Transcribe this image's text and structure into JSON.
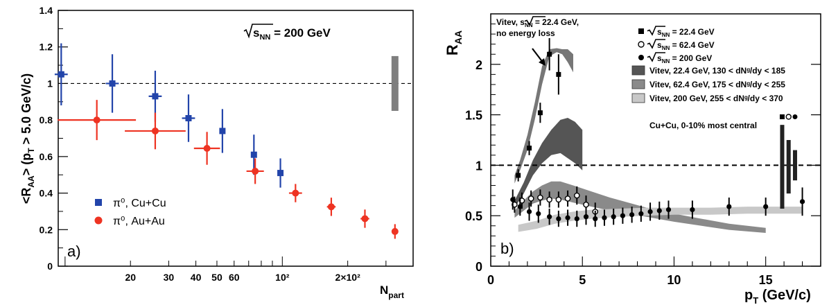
{
  "chart_data": [
    {
      "type": "scatter",
      "panel_label": "a)",
      "xlabel_main": "N",
      "xlabel_sub": "part",
      "ylabel_parts": [
        "<R",
        "AA",
        "> (p",
        "T",
        " > 5.0 GeV/c)"
      ],
      "annotation_main": "s",
      "annotation_sub": "NN",
      "annotation_rest": " = 200 GeV",
      "xscale": "log",
      "xlim": [
        9.3,
        400
      ],
      "ylim": [
        0,
        1.4
      ],
      "reference_line": 1,
      "grid": false,
      "legend_position": "bottom-left",
      "yticks": [
        0,
        0.2,
        0.4,
        0.6,
        0.8,
        1,
        1.2,
        1.4
      ],
      "ytick_labels": [
        "0",
        "0.2",
        "0.4",
        "0.6",
        "0.8",
        "1",
        "1.2",
        "1.4"
      ],
      "xticks": [
        20,
        30,
        40,
        50,
        60,
        100,
        200
      ],
      "xtick_labels": [
        "20",
        "30",
        "40",
        "50",
        "60",
        "10²",
        "2×10²"
      ],
      "systematic_band": {
        "x": 330,
        "low": 0.85,
        "high": 1.15
      },
      "series": [
        {
          "name": "π⁰, Cu+Cu",
          "color": "#2244aa",
          "marker": "square",
          "points": [
            {
              "x": 9.6,
              "y": 1.05,
              "err": 0.17,
              "xerr": 0.03
            },
            {
              "x": 16.5,
              "y": 1.0,
              "err": 0.16,
              "xerr": 0.03
            },
            {
              "x": 26,
              "y": 0.93,
              "err": 0.14,
              "xerr": 0.03
            },
            {
              "x": 37,
              "y": 0.81,
              "err": 0.13,
              "xerr": 0.03
            },
            {
              "x": 53,
              "y": 0.74,
              "err": 0.12,
              "xerr": 0.01
            },
            {
              "x": 74,
              "y": 0.61,
              "err": 0.11,
              "xerr": 0.01
            },
            {
              "x": 98,
              "y": 0.51,
              "err": 0.08,
              "xerr": 0.01
            }
          ]
        },
        {
          "name": "π⁰, Au+Au",
          "color": "#ee3322",
          "marker": "circle",
          "points": [
            {
              "x": 14,
              "y": 0.8,
              "err": 0.11,
              "xerr": 0.18
            },
            {
              "x": 26,
              "y": 0.74,
              "err": 0.1,
              "xerr": 0.14
            },
            {
              "x": 45,
              "y": 0.645,
              "err": 0.09,
              "xerr": 0.06
            },
            {
              "x": 75,
              "y": 0.52,
              "err": 0.07,
              "xerr": 0.04
            },
            {
              "x": 115,
              "y": 0.4,
              "err": 0.05,
              "xerr": 0.03
            },
            {
              "x": 168,
              "y": 0.325,
              "err": 0.05,
              "xerr": 0.02
            },
            {
              "x": 240,
              "y": 0.26,
              "err": 0.05,
              "xerr": 0.02
            },
            {
              "x": 330,
              "y": 0.19,
              "err": 0.04,
              "xerr": 0.015
            }
          ]
        }
      ]
    },
    {
      "type": "scatter",
      "panel_label": "b)",
      "ylabel_main": "R",
      "ylabel_sub": "AA",
      "xlabel_main": "p",
      "xlabel_sub": "T",
      "xlabel_rest": " (GeV/c)",
      "xlim": [
        0,
        18
      ],
      "ylim": [
        0,
        2.5
      ],
      "reference_line": 1,
      "grid": false,
      "legend_position": "top-right",
      "xticks": [
        0,
        5,
        10,
        15
      ],
      "xtick_labels": [
        "0",
        "5",
        "10",
        "15"
      ],
      "yticks": [
        0,
        0.5,
        1,
        1.5,
        2
      ],
      "ytick_labels": [
        "0",
        "0.5",
        "1",
        "1.5",
        "2"
      ],
      "annotation_top": [
        "Vitev,",
        "s",
        "NN",
        " = 22.4 GeV,",
        "no energy loss"
      ],
      "annotation_side": "Cu+Cu, 0-10% most central",
      "legend_markers": [
        {
          "label_main": "s",
          "label_sub": "NN",
          "label_rest": " = 22.4 GeV",
          "marker": "square"
        },
        {
          "label_main": "s",
          "label_sub": "NN",
          "label_rest": " = 62.4 GeV",
          "marker": "open-circle"
        },
        {
          "label_main": "s",
          "label_sub": "NN",
          "label_rest": " = 200 GeV",
          "marker": "circle"
        }
      ],
      "legend_bands": [
        {
          "label": "Vitev, 22.4 GeV, 130 < dNᵍ/dy < 185",
          "color": "#555555"
        },
        {
          "label": "Vitev, 62.4 GeV, 175 < dNᵍ/dy < 255",
          "color": "#8a8a8a"
        },
        {
          "label": "Vitev, 200 GeV, 255 < dNᵍ/dy < 370",
          "color": "#c8c8c8"
        }
      ],
      "bands": [
        {
          "name": "Vitev, no energy loss",
          "color": "#777777",
          "x": [
            1.3,
            1.6,
            2.0,
            2.4,
            2.8,
            3.2,
            3.6,
            3.9,
            4.2,
            4.5
          ],
          "low": [
            0.82,
            0.95,
            1.15,
            1.45,
            1.8,
            2.08,
            2.12,
            2.1,
            2.02,
            1.92
          ],
          "high": [
            0.9,
            1.05,
            1.3,
            1.62,
            1.98,
            2.15,
            2.16,
            2.15,
            2.15,
            2.1
          ]
        },
        {
          "name": "Vitev, 22.4 GeV",
          "color": "#555555",
          "x": [
            1.3,
            1.8,
            2.3,
            2.8,
            3.3,
            3.8,
            4.2,
            4.6,
            5.0
          ],
          "low": [
            0.58,
            0.72,
            0.9,
            1.02,
            1.1,
            1.12,
            1.07,
            1.02,
            0.95
          ],
          "high": [
            0.65,
            0.83,
            1.05,
            1.22,
            1.35,
            1.45,
            1.47,
            1.43,
            1.35
          ]
        },
        {
          "name": "Vitev, 62.4 GeV",
          "color": "#8a8a8a",
          "x": [
            1.3,
            1.8,
            2.3,
            2.8,
            3.3,
            3.8,
            4.5,
            5.5,
            6.5,
            7.5,
            8.5,
            10,
            11.5,
            13,
            15
          ],
          "low": [
            0.48,
            0.55,
            0.62,
            0.65,
            0.67,
            0.66,
            0.63,
            0.59,
            0.55,
            0.52,
            0.49,
            0.44,
            0.4,
            0.36,
            0.33
          ],
          "high": [
            0.55,
            0.65,
            0.74,
            0.8,
            0.84,
            0.84,
            0.8,
            0.74,
            0.68,
            0.63,
            0.58,
            0.52,
            0.47,
            0.42,
            0.38
          ]
        },
        {
          "name": "Vitev, 200 GeV",
          "color": "#c8c8c8",
          "x": [
            1.5,
            2.5,
            3.5,
            4.5,
            5.5,
            7,
            8.5,
            10,
            12,
            14,
            16,
            17
          ],
          "low": [
            0.34,
            0.37,
            0.42,
            0.45,
            0.47,
            0.49,
            0.5,
            0.51,
            0.51,
            0.52,
            0.52,
            0.52
          ],
          "high": [
            0.41,
            0.45,
            0.51,
            0.54,
            0.56,
            0.57,
            0.58,
            0.58,
            0.58,
            0.59,
            0.59,
            0.59
          ]
        }
      ],
      "systematic_bars": [
        {
          "x": 15.9,
          "low": 0.57,
          "high": 1.4,
          "color": "#222222"
        },
        {
          "x": 16.25,
          "low": 0.72,
          "high": 1.25,
          "color": "#222222"
        },
        {
          "x": 16.6,
          "low": 0.85,
          "high": 1.15,
          "color": "#222222"
        }
      ],
      "series": [
        {
          "name": "22.4 GeV",
          "marker": "square",
          "points": [
            {
              "x": 1.5,
              "y": 0.9,
              "err": 0.06
            },
            {
              "x": 2.1,
              "y": 1.17,
              "err": 0.07
            },
            {
              "x": 2.7,
              "y": 1.52,
              "err": 0.1
            },
            {
              "x": 3.2,
              "y": 2.1,
              "err": 0.16
            },
            {
              "x": 3.7,
              "y": 1.9,
              "err": 0.2
            }
          ]
        },
        {
          "name": "62.4 GeV",
          "marker": "open-circle",
          "points": [
            {
              "x": 1.3,
              "y": 0.61,
              "err": 0.08
            },
            {
              "x": 1.7,
              "y": 0.65,
              "err": 0.08
            },
            {
              "x": 2.2,
              "y": 0.67,
              "err": 0.08
            },
            {
              "x": 2.7,
              "y": 0.68,
              "err": 0.08
            },
            {
              "x": 3.2,
              "y": 0.66,
              "err": 0.08
            },
            {
              "x": 3.7,
              "y": 0.66,
              "err": 0.08
            },
            {
              "x": 4.2,
              "y": 0.67,
              "err": 0.08
            },
            {
              "x": 4.7,
              "y": 0.7,
              "err": 0.09
            },
            {
              "x": 5.2,
              "y": 0.61,
              "err": 0.09
            },
            {
              "x": 5.7,
              "y": 0.54,
              "err": 0.09
            }
          ]
        },
        {
          "name": "200 GeV",
          "marker": "circle",
          "points": [
            {
              "x": 1.2,
              "y": 0.66,
              "err": 0.1
            },
            {
              "x": 1.6,
              "y": 0.59,
              "err": 0.09
            },
            {
              "x": 2.1,
              "y": 0.54,
              "err": 0.09
            },
            {
              "x": 2.6,
              "y": 0.52,
              "err": 0.09
            },
            {
              "x": 3.2,
              "y": 0.49,
              "err": 0.08
            },
            {
              "x": 3.7,
              "y": 0.47,
              "err": 0.08
            },
            {
              "x": 4.2,
              "y": 0.48,
              "err": 0.08
            },
            {
              "x": 4.7,
              "y": 0.47,
              "err": 0.08
            },
            {
              "x": 5.2,
              "y": 0.49,
              "err": 0.08
            },
            {
              "x": 5.7,
              "y": 0.47,
              "err": 0.08
            },
            {
              "x": 6.2,
              "y": 0.48,
              "err": 0.08
            },
            {
              "x": 6.7,
              "y": 0.49,
              "err": 0.08
            },
            {
              "x": 7.2,
              "y": 0.5,
              "err": 0.08
            },
            {
              "x": 7.7,
              "y": 0.51,
              "err": 0.08
            },
            {
              "x": 8.2,
              "y": 0.52,
              "err": 0.08
            },
            {
              "x": 8.7,
              "y": 0.54,
              "err": 0.09
            },
            {
              "x": 9.2,
              "y": 0.55,
              "err": 0.09
            },
            {
              "x": 9.7,
              "y": 0.56,
              "err": 0.09
            },
            {
              "x": 11,
              "y": 0.56,
              "err": 0.09
            },
            {
              "x": 13,
              "y": 0.59,
              "err": 0.09
            },
            {
              "x": 15,
              "y": 0.59,
              "err": 0.09
            },
            {
              "x": 17,
              "y": 0.64,
              "err": 0.14
            }
          ]
        }
      ]
    }
  ]
}
